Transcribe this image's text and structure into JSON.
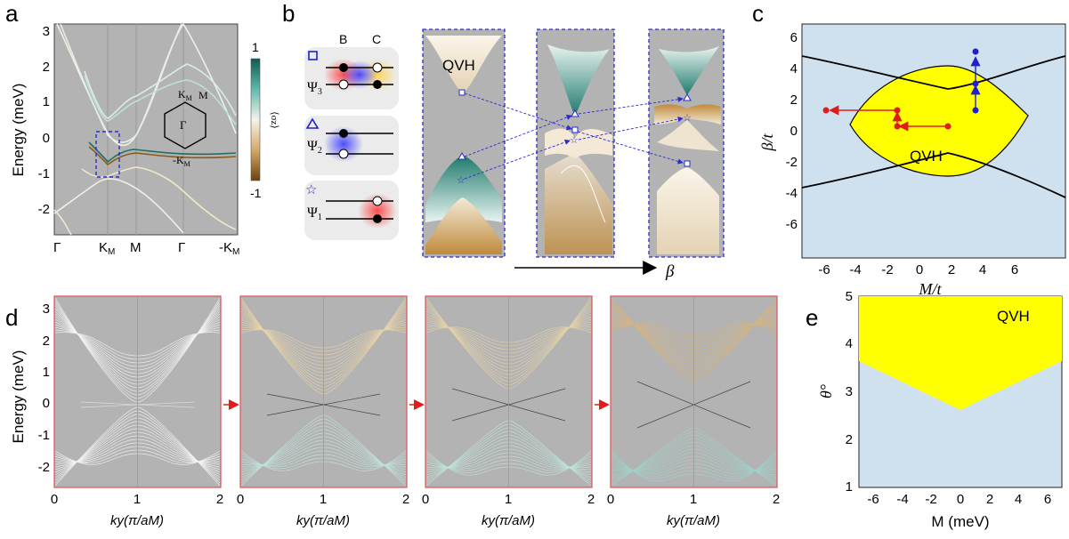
{
  "panels": {
    "a": {
      "letter": "a",
      "ylabel": "Energy (meV)",
      "yticks": [
        "3",
        "2",
        "1",
        "0",
        "-1",
        "-2"
      ],
      "xticks": [
        "Γ",
        "K",
        "M",
        "Γ",
        "-K"
      ],
      "xtick_sub": "M",
      "colorbar": {
        "max": "1",
        "min": "-1",
        "label": "⟨σz⟩"
      },
      "bz": {
        "center": "Γ",
        "k": "K",
        "m": "M",
        "mk": "-K",
        "sub": "M"
      }
    },
    "b": {
      "letter": "b",
      "orbital_B": "B",
      "orbital_C": "C",
      "psi": [
        "Ψ",
        "Ψ",
        "Ψ"
      ],
      "psi_sub": [
        "3",
        "2",
        "1"
      ],
      "qvh": "QVH",
      "beta": "β"
    },
    "c": {
      "letter": "c",
      "xlabel": "M/t",
      "ylabel": "β/t",
      "xticks": [
        "-6",
        "-4",
        "-2",
        "0",
        "2",
        "4",
        "6"
      ],
      "yticks": [
        "6",
        "4",
        "2",
        "0",
        "-2",
        "-4",
        "-6"
      ],
      "qvh": "QVH"
    },
    "d": {
      "letter": "d",
      "ylabel": "Energy (meV)",
      "yticks": [
        "3",
        "2",
        "1",
        "0",
        "-1",
        "-2"
      ],
      "xticks": [
        "0",
        "1",
        "2"
      ],
      "xlabel": "ky(π/aM)"
    },
    "e": {
      "letter": "e",
      "xlabel": "M (meV)",
      "ylabel": "θ°",
      "xticks": [
        "-6",
        "-4",
        "-2",
        "0",
        "2",
        "4",
        "6"
      ],
      "yticks": [
        "5",
        "4",
        "3",
        "2",
        "1"
      ],
      "qvh": "QVH"
    }
  },
  "colors": {
    "background_gray": "#b3b3b3",
    "teal": "#1f6f63",
    "brown": "#8a5a18",
    "qvh_yellow": "#ffff00",
    "light_blue": "#cfe1ef",
    "red_frame": "#e05a5a",
    "blue_dash": "#2b2bd0"
  }
}
